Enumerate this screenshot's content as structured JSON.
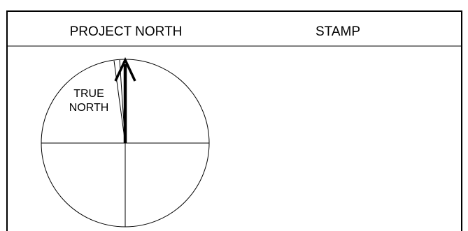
{
  "header": {
    "project_north_title": "PROJECT NORTH",
    "stamp_title": "STAMP"
  },
  "compass": {
    "true_north_line1": "TRUE",
    "true_north_line2": "NORTH"
  }
}
